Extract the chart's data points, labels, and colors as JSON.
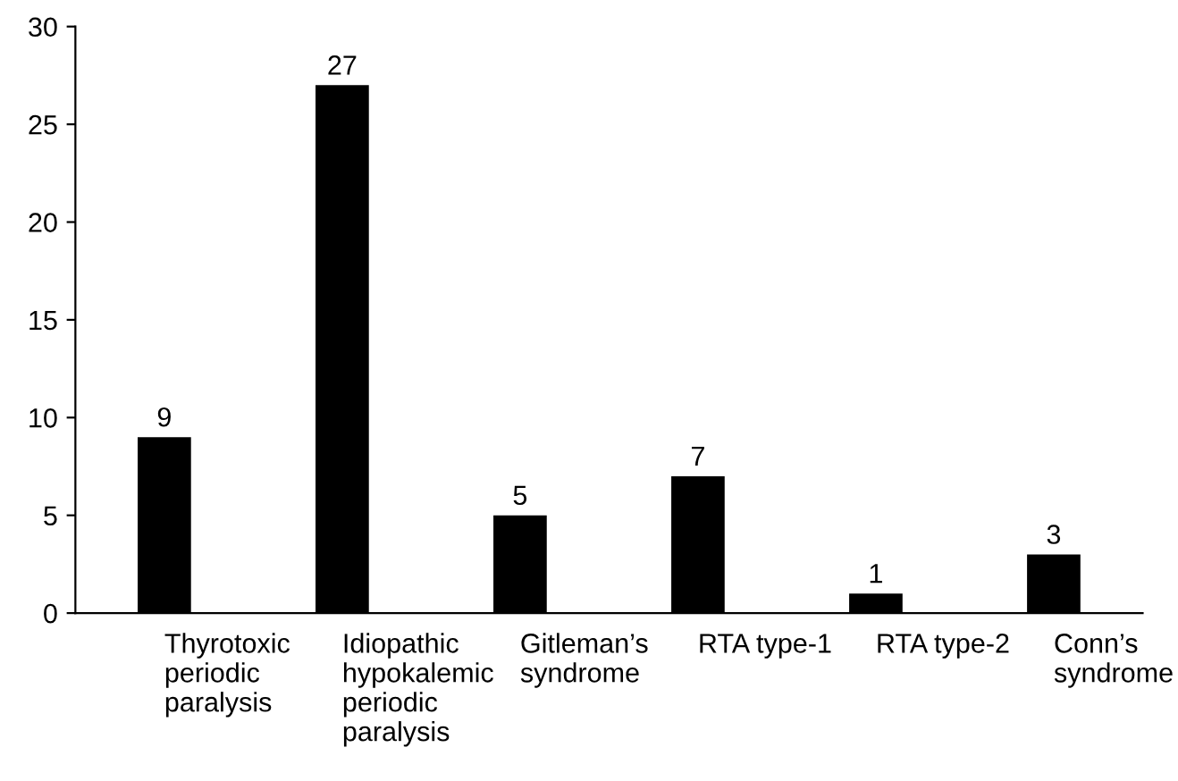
{
  "chart_data": {
    "type": "bar",
    "categories": [
      "Thyrotoxic\nperiodic\nparalysis",
      "Idiopathic\nhypokalemic\nperiodic\nparalysis",
      "Gitleman’s\nsyndrome",
      "RTA type-1",
      "RTA type-2",
      "Conn’s\nsyndrome"
    ],
    "values": [
      9,
      27,
      5,
      7,
      1,
      3
    ],
    "color": "#000000",
    "ylim": [
      0,
      30
    ],
    "yticks": [
      0,
      5,
      10,
      15,
      20,
      25,
      30
    ],
    "data_labels": true,
    "grid": false
  }
}
